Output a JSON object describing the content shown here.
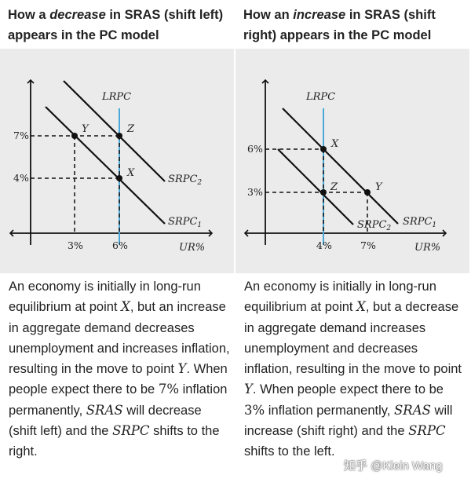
{
  "left": {
    "heading": {
      "pre": "How a ",
      "em": "decrease",
      "post": " in SRAS (shift left) appears in the PC model"
    },
    "graph": {
      "lrpc": "LRPC",
      "srpc2": "SRPC",
      "srpc2_sub": "2",
      "srpc1": "SRPC",
      "srpc1_sub": "1",
      "xaxis": "UR%",
      "y_high": "7%",
      "y_low": "4%",
      "x_left": "3%",
      "x_right": "6%",
      "pt_y": "Y",
      "pt_z": "Z",
      "pt_x": "X"
    },
    "desc": {
      "t1": "An economy is initially in long-run equilibrium at point ",
      "m1": "X",
      "t2": ", but an increase in aggregate demand decreases unemployment and increases inflation, resulting in the move to point ",
      "m2": "Y",
      "t3": ". When people expect there to be ",
      "m3": "7",
      "m3u": "%",
      "t4": " inflation permanently, ",
      "m4": "SRAS",
      "t5": " will decrease (shift left) and the ",
      "m5": "SRPC",
      "t6": " shifts to the right."
    }
  },
  "right": {
    "heading": {
      "pre": "How an ",
      "em": "increase",
      "post": " in SRAS (shift right) appears in the PC model"
    },
    "graph": {
      "lrpc": "LRPC",
      "srpc1": "SRPC",
      "srpc1_sub": "1",
      "srpc2": "SRPC",
      "srpc2_sub": "2",
      "xaxis": "UR%",
      "y_high": "6%",
      "y_low": "3%",
      "x_left": "4%",
      "x_right": "7%",
      "pt_x": "X",
      "pt_z": "Z",
      "pt_y": "Y"
    },
    "desc": {
      "t1": "An economy is initially in long-run equilibrium at point ",
      "m1": "X",
      "t2": ", but a decrease in aggregate demand increases unemployment and decreases inflation, resulting in the move to point ",
      "m2": "Y",
      "t3": ". When people expect there to be ",
      "m3": "3",
      "m3u": "%",
      "t4": " inflation permanently, ",
      "m4": "SRAS",
      "t5": " will increase (shift right) and the ",
      "m5": "SRPC",
      "t6": " shifts to the left."
    }
  },
  "watermark": "知乎 @Klein Wang",
  "colors": {
    "lrpc": "#4aa8d8",
    "curve": "#111111",
    "panel": "#ebebeb"
  }
}
